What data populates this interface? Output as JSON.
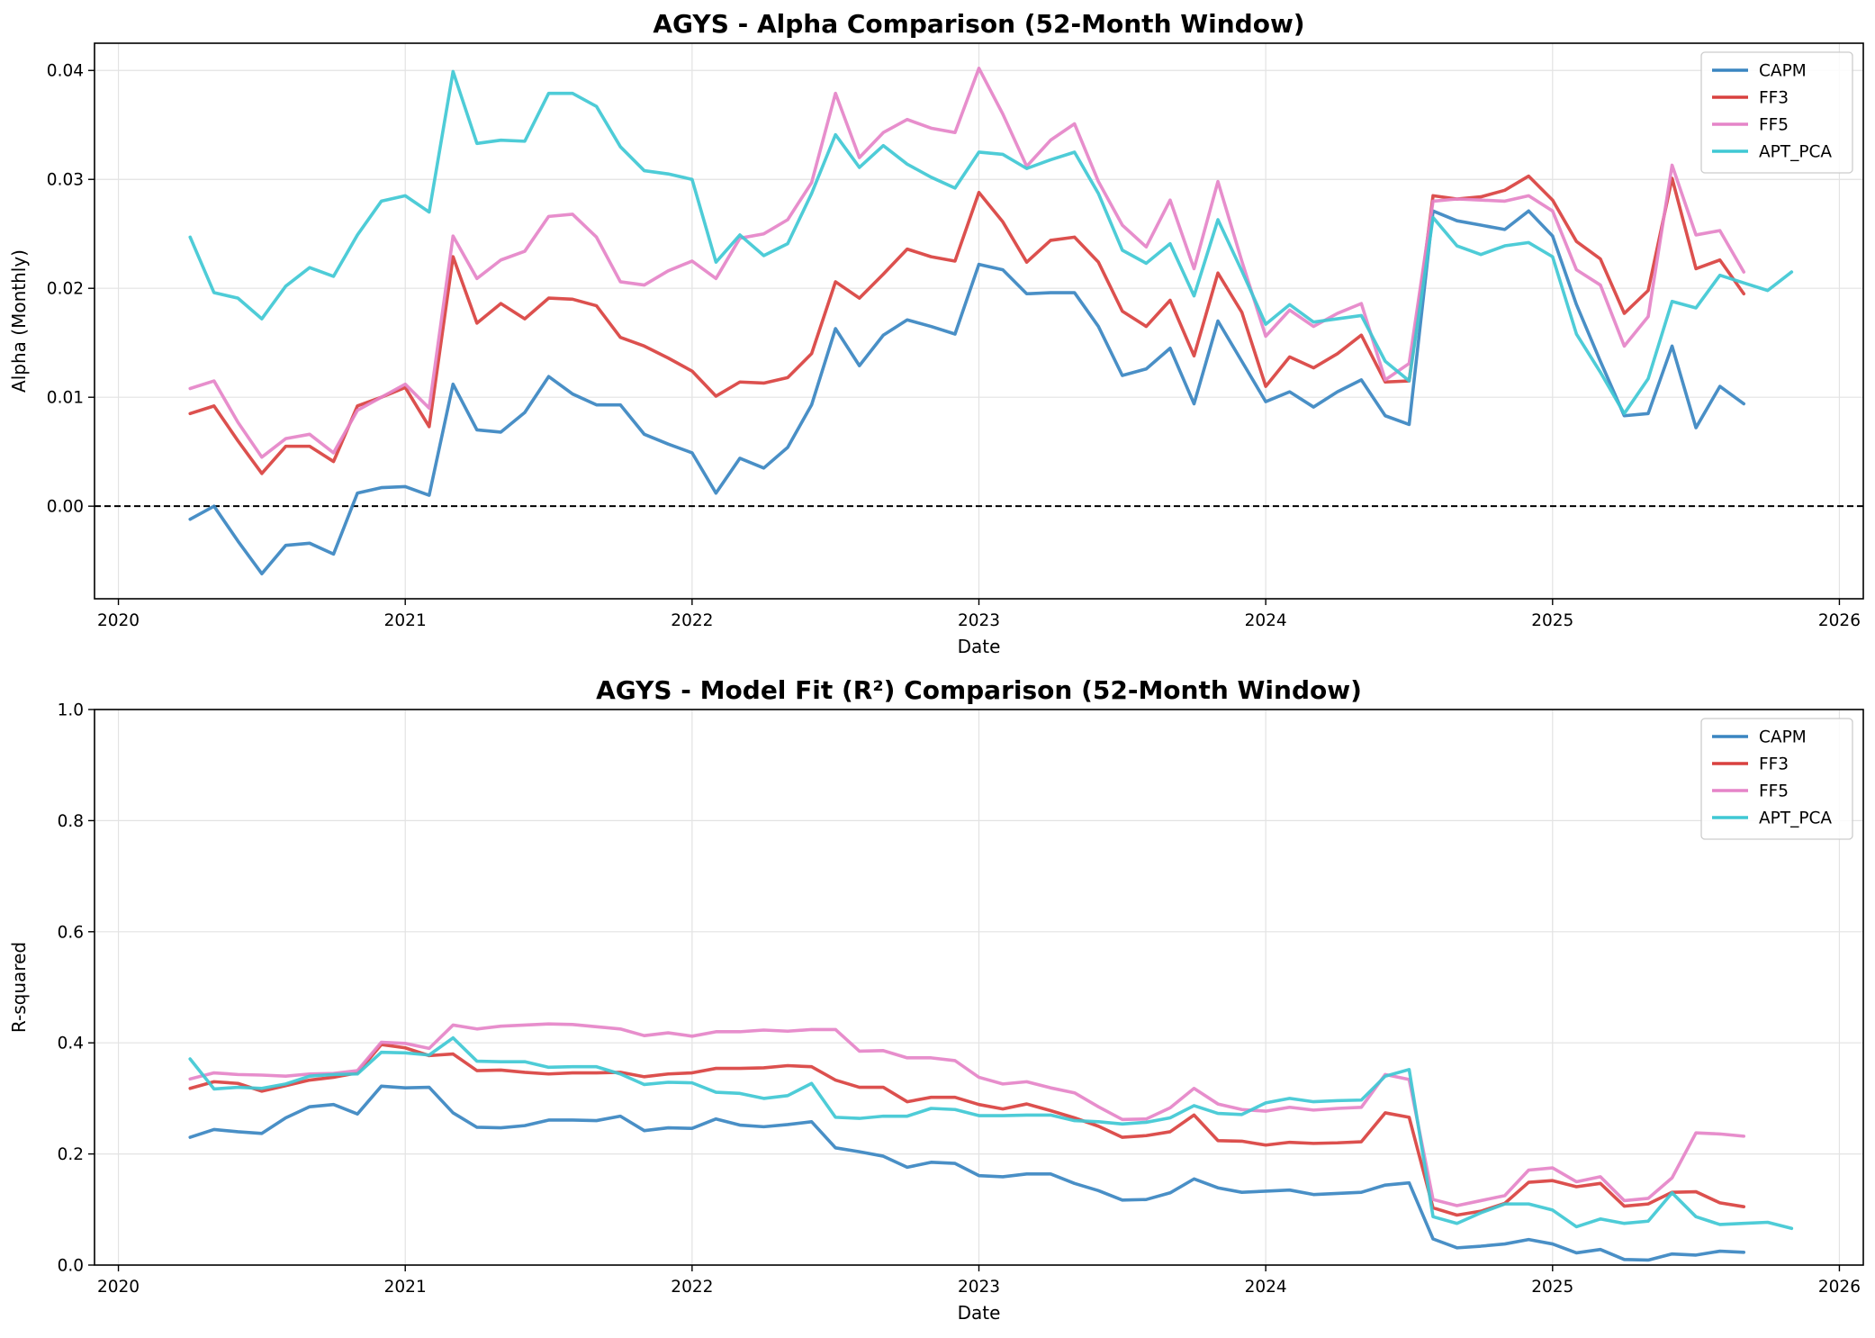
{
  "chart_data": [
    {
      "type": "line",
      "title": "AGYS - Alpha Comparison (52-Month Window)",
      "xlabel": "Date",
      "ylabel": "Alpha (Monthly)",
      "xlim": [
        "2019-12-01",
        "2026-02-01"
      ],
      "ylim": [
        -0.0085,
        0.0425
      ],
      "x_ticks": [
        "2020",
        "2021",
        "2022",
        "2023",
        "2024",
        "2025",
        "2026"
      ],
      "y_ticks": [
        "0.00",
        "0.01",
        "0.02",
        "0.03",
        "0.04"
      ],
      "y_tick_values": [
        0,
        0.01,
        0.02,
        0.03,
        0.04
      ],
      "reference_line": {
        "y": 0,
        "style": "dashed",
        "color": "#000000"
      },
      "grid": true,
      "legend": "top-right",
      "series": [
        {
          "name": "CAPM",
          "color": "#3a85c1",
          "start": "2020-04",
          "values": [
            -0.0012,
            0.0,
            -0.0032,
            -0.0062,
            -0.0036,
            -0.0034,
            -0.0044,
            0.0012,
            0.0017,
            0.0018,
            0.001,
            0.0112,
            0.007,
            0.0068,
            0.0086,
            0.0119,
            0.0103,
            0.0093,
            0.0093,
            0.0066,
            0.0057,
            0.0049,
            0.0012,
            0.0044,
            0.0035,
            0.0054,
            0.0093,
            0.0163,
            0.0129,
            0.0157,
            0.0171,
            0.0165,
            0.0158,
            0.0222,
            0.0217,
            0.0195,
            0.0196,
            0.0196,
            0.0165,
            0.012,
            0.0126,
            0.0145,
            0.0094,
            0.017,
            0.0133,
            0.0096,
            0.0105,
            0.0091,
            0.0105,
            0.0116,
            0.0083,
            0.0075,
            0.0271,
            0.0262,
            0.0258,
            0.0254,
            0.0271,
            0.0248,
            0.0185,
            0.0133,
            0.0083,
            0.0085,
            0.0147,
            0.0072,
            0.011,
            0.0094
          ]
        },
        {
          "name": "FF3",
          "color": "#d9413f",
          "start": "2020-04",
          "values": [
            0.0085,
            0.0092,
            0.006,
            0.003,
            0.0055,
            0.0055,
            0.0041,
            0.0092,
            0.01,
            0.0109,
            0.0073,
            0.0229,
            0.0168,
            0.0186,
            0.0172,
            0.0191,
            0.019,
            0.0184,
            0.0155,
            0.0147,
            0.0136,
            0.0124,
            0.0101,
            0.0114,
            0.0113,
            0.0118,
            0.014,
            0.0206,
            0.0191,
            0.0213,
            0.0236,
            0.0229,
            0.0225,
            0.0288,
            0.0261,
            0.0224,
            0.0244,
            0.0247,
            0.0224,
            0.0179,
            0.0165,
            0.0189,
            0.0138,
            0.0214,
            0.0178,
            0.011,
            0.0137,
            0.0127,
            0.014,
            0.0157,
            0.0114,
            0.0115,
            0.0285,
            0.0282,
            0.0284,
            0.029,
            0.0303,
            0.0281,
            0.0243,
            0.0227,
            0.0177,
            0.0198,
            0.0301,
            0.0218,
            0.0226,
            0.0195
          ]
        },
        {
          "name": "FF5",
          "color": "#e584c8",
          "start": "2020-04",
          "values": [
            0.0108,
            0.0115,
            0.0077,
            0.0045,
            0.0062,
            0.0066,
            0.0049,
            0.0088,
            0.01,
            0.0112,
            0.009,
            0.0248,
            0.0209,
            0.0226,
            0.0234,
            0.0266,
            0.0268,
            0.0247,
            0.0206,
            0.0203,
            0.0216,
            0.0225,
            0.0209,
            0.0246,
            0.025,
            0.0263,
            0.0297,
            0.0379,
            0.032,
            0.0343,
            0.0355,
            0.0347,
            0.0343,
            0.0402,
            0.036,
            0.0312,
            0.0336,
            0.0351,
            0.0298,
            0.0258,
            0.0238,
            0.0281,
            0.0218,
            0.0298,
            0.0225,
            0.0156,
            0.018,
            0.0165,
            0.0177,
            0.0186,
            0.0116,
            0.0131,
            0.028,
            0.0282,
            0.0281,
            0.028,
            0.0285,
            0.0271,
            0.0217,
            0.0203,
            0.0147,
            0.0174,
            0.0313,
            0.0249,
            0.0253,
            0.0215
          ]
        },
        {
          "name": "APT_PCA",
          "color": "#3fc8d4",
          "start": "2020-04",
          "values": [
            0.0247,
            0.0196,
            0.0191,
            0.0172,
            0.0202,
            0.0219,
            0.0211,
            0.0249,
            0.028,
            0.0285,
            0.027,
            0.0399,
            0.0333,
            0.0336,
            0.0335,
            0.0379,
            0.0379,
            0.0367,
            0.033,
            0.0308,
            0.0305,
            0.03,
            0.0224,
            0.0249,
            0.023,
            0.0241,
            0.0287,
            0.0341,
            0.0311,
            0.0331,
            0.0314,
            0.0302,
            0.0292,
            0.0325,
            0.0323,
            0.031,
            0.0318,
            0.0325,
            0.0287,
            0.0235,
            0.0223,
            0.0241,
            0.0193,
            0.0263,
            0.0216,
            0.0167,
            0.0185,
            0.0169,
            0.0172,
            0.0175,
            0.0133,
            0.0115,
            0.0265,
            0.0239,
            0.0231,
            0.0239,
            0.0242,
            0.0229,
            0.0158,
            0.0123,
            0.0085,
            0.0117,
            0.0188,
            0.0182,
            0.0212,
            0.0205,
            0.0198,
            0.0215
          ]
        }
      ]
    },
    {
      "type": "line",
      "title": "AGYS - Model Fit (R²) Comparison (52-Month Window)",
      "xlabel": "Date",
      "ylabel": "R-squared",
      "xlim": [
        "2019-12-01",
        "2026-02-01"
      ],
      "ylim": [
        0,
        1
      ],
      "x_ticks": [
        "2020",
        "2021",
        "2022",
        "2023",
        "2024",
        "2025",
        "2026"
      ],
      "y_ticks": [
        "0.0",
        "0.2",
        "0.4",
        "0.6",
        "0.8",
        "1.0"
      ],
      "y_tick_values": [
        0,
        0.2,
        0.4,
        0.6,
        0.8,
        1.0
      ],
      "grid": true,
      "legend": "top-right",
      "series": [
        {
          "name": "CAPM",
          "color": "#3a85c1",
          "start": "2020-04",
          "values": [
            0.23,
            0.244,
            0.24,
            0.237,
            0.265,
            0.285,
            0.289,
            0.272,
            0.322,
            0.319,
            0.32,
            0.274,
            0.248,
            0.247,
            0.251,
            0.261,
            0.261,
            0.26,
            0.268,
            0.242,
            0.247,
            0.246,
            0.263,
            0.252,
            0.249,
            0.253,
            0.258,
            0.211,
            0.204,
            0.196,
            0.176,
            0.185,
            0.183,
            0.161,
            0.159,
            0.164,
            0.164,
            0.147,
            0.134,
            0.117,
            0.118,
            0.13,
            0.155,
            0.139,
            0.131,
            0.133,
            0.135,
            0.127,
            0.129,
            0.131,
            0.144,
            0.148,
            0.047,
            0.031,
            0.034,
            0.038,
            0.046,
            0.038,
            0.022,
            0.028,
            0.01,
            0.009,
            0.02,
            0.018,
            0.025,
            0.023
          ]
        },
        {
          "name": "FF3",
          "color": "#d9413f",
          "start": "2020-04",
          "values": [
            0.318,
            0.33,
            0.327,
            0.313,
            0.323,
            0.333,
            0.338,
            0.346,
            0.397,
            0.391,
            0.377,
            0.38,
            0.35,
            0.351,
            0.347,
            0.344,
            0.346,
            0.346,
            0.347,
            0.339,
            0.344,
            0.346,
            0.354,
            0.354,
            0.355,
            0.359,
            0.357,
            0.333,
            0.32,
            0.32,
            0.294,
            0.302,
            0.302,
            0.289,
            0.281,
            0.29,
            0.278,
            0.265,
            0.25,
            0.23,
            0.233,
            0.24,
            0.27,
            0.224,
            0.223,
            0.216,
            0.221,
            0.219,
            0.22,
            0.222,
            0.274,
            0.266,
            0.103,
            0.09,
            0.097,
            0.111,
            0.149,
            0.152,
            0.141,
            0.147,
            0.106,
            0.11,
            0.131,
            0.132,
            0.112,
            0.105
          ]
        },
        {
          "name": "FF5",
          "color": "#e584c8",
          "start": "2020-04",
          "values": [
            0.335,
            0.346,
            0.343,
            0.342,
            0.34,
            0.344,
            0.345,
            0.35,
            0.401,
            0.399,
            0.39,
            0.432,
            0.425,
            0.43,
            0.432,
            0.434,
            0.433,
            0.429,
            0.425,
            0.413,
            0.418,
            0.412,
            0.42,
            0.42,
            0.423,
            0.421,
            0.424,
            0.424,
            0.385,
            0.386,
            0.373,
            0.373,
            0.368,
            0.338,
            0.326,
            0.33,
            0.319,
            0.31,
            0.285,
            0.262,
            0.263,
            0.283,
            0.318,
            0.29,
            0.28,
            0.277,
            0.284,
            0.279,
            0.282,
            0.284,
            0.343,
            0.334,
            0.118,
            0.107,
            0.116,
            0.125,
            0.171,
            0.175,
            0.15,
            0.159,
            0.116,
            0.12,
            0.157,
            0.238,
            0.236,
            0.232
          ]
        },
        {
          "name": "APT_PCA",
          "color": "#3fc8d4",
          "start": "2020-04",
          "values": [
            0.371,
            0.317,
            0.32,
            0.318,
            0.326,
            0.34,
            0.343,
            0.344,
            0.383,
            0.382,
            0.378,
            0.409,
            0.367,
            0.366,
            0.366,
            0.356,
            0.357,
            0.357,
            0.344,
            0.325,
            0.329,
            0.328,
            0.311,
            0.309,
            0.3,
            0.305,
            0.327,
            0.266,
            0.264,
            0.268,
            0.268,
            0.282,
            0.28,
            0.269,
            0.269,
            0.27,
            0.27,
            0.26,
            0.258,
            0.254,
            0.257,
            0.265,
            0.287,
            0.273,
            0.271,
            0.292,
            0.3,
            0.294,
            0.296,
            0.297,
            0.34,
            0.352,
            0.087,
            0.075,
            0.094,
            0.11,
            0.11,
            0.099,
            0.069,
            0.083,
            0.075,
            0.079,
            0.13,
            0.087,
            0.073,
            0.075,
            0.077,
            0.066
          ]
        }
      ]
    }
  ]
}
